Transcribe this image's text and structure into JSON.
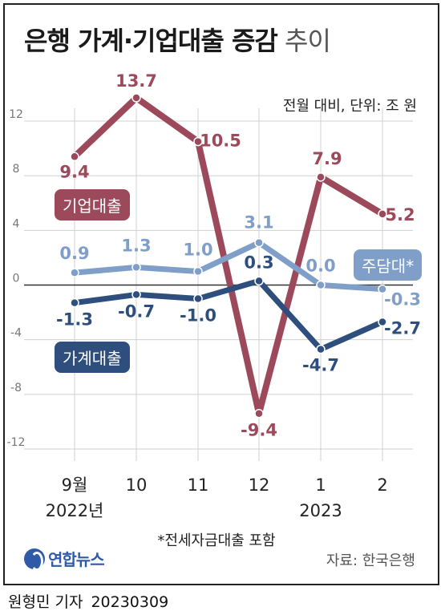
{
  "title": {
    "main": "은행 가계·기업대출 증감",
    "sub": "추이"
  },
  "unit_note": "전월 대비, 단위: 조 원",
  "footnote": "*전세자금대출 포함",
  "source": "자료: 한국은행",
  "logo_text": "연합뉴스",
  "byline": {
    "author": "원형민 기자",
    "date": "20230309"
  },
  "colors": {
    "corporate": "#9c4a5b",
    "mortgage": "#7f9fc8",
    "household": "#2e4f7e",
    "grid": "#d0d0d0",
    "zero": "#333333"
  },
  "chart_data": {
    "type": "line",
    "x": [
      "9월",
      "10",
      "11",
      "12",
      "1",
      "2"
    ],
    "x_year_labels": [
      {
        "label": "2022년",
        "index": 0
      },
      {
        "label": "2023",
        "index": 4
      }
    ],
    "ylim": [
      -12,
      12
    ],
    "yticks": [
      12,
      8,
      4,
      0,
      -4,
      -8,
      -12
    ],
    "grid": true,
    "series": [
      {
        "name": "기업대출",
        "values": [
          9.4,
          13.7,
          10.5,
          -9.4,
          7.9,
          5.2
        ],
        "labels": [
          "9.4",
          "13.7",
          "10.5",
          "-9.4",
          "7.9",
          "5.2"
        ]
      },
      {
        "name": "주담대*",
        "values": [
          0.9,
          1.3,
          1.0,
          3.1,
          0.0,
          -0.3
        ],
        "labels": [
          "0.9",
          "1.3",
          "1.0",
          "3.1",
          "0.0",
          "-0.3"
        ]
      },
      {
        "name": "가계대출",
        "values": [
          -1.3,
          -0.7,
          -1.0,
          0.3,
          -4.7,
          -2.7
        ],
        "labels": [
          "-1.3",
          "-0.7",
          "-1.0",
          "0.3",
          "-4.7",
          "-2.7"
        ]
      }
    ]
  }
}
